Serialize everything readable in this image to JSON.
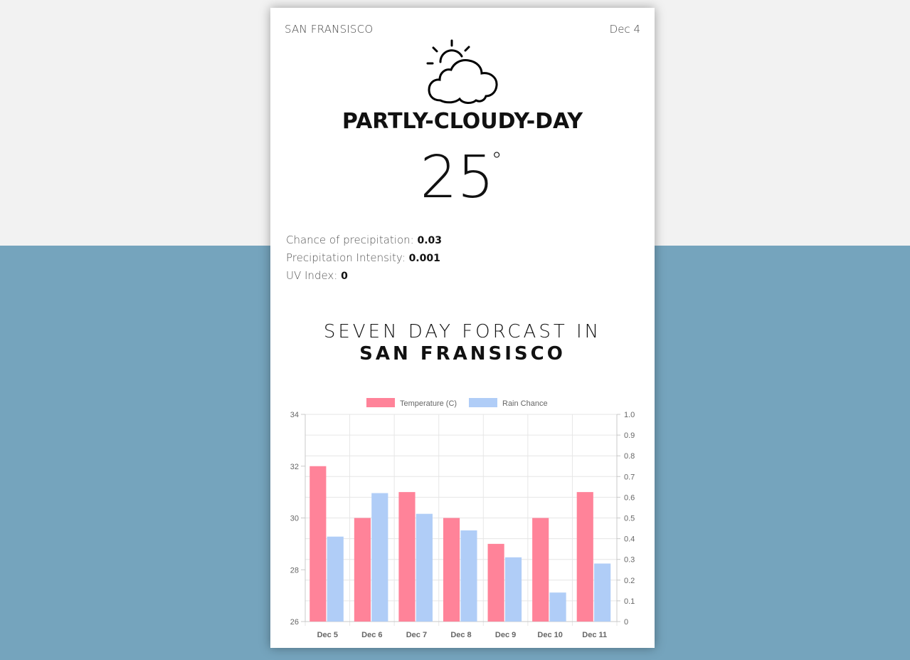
{
  "header": {
    "city": "SAN FRANSISCO",
    "date": "Dec 4"
  },
  "current": {
    "icon": "partly-cloudy-day-icon",
    "summary": "PARTLY-CLOUDY-DAY",
    "temperature": "25",
    "degree_symbol": "°"
  },
  "stats": [
    {
      "label": "Chance of precipitation:",
      "value": "0.03"
    },
    {
      "label": "Precipitation Intensity:",
      "value": "0.001"
    },
    {
      "label": "UV Index:",
      "value": "0"
    }
  ],
  "forecast": {
    "title_line1": "SEVEN DAY FORCAST IN",
    "title_line2": "SAN FRANSISCO"
  },
  "colors": {
    "temperature": "#ff8399",
    "rain": "#b0cdf7",
    "bottom_bg": "#75a4bd",
    "top_bg": "#f2f2f2"
  },
  "chart_data": {
    "type": "bar",
    "categories": [
      "Dec 5",
      "Dec 6",
      "Dec 7",
      "Dec 8",
      "Dec 9",
      "Dec 10",
      "Dec 11"
    ],
    "series": [
      {
        "name": "Temperature (C)",
        "axis": "left",
        "values": [
          32,
          30,
          31,
          30,
          29,
          30,
          31
        ]
      },
      {
        "name": "Rain Chance",
        "axis": "right",
        "values": [
          0.41,
          0.62,
          0.52,
          0.44,
          0.31,
          0.14,
          0.28
        ]
      }
    ],
    "y_left": {
      "min": 26,
      "max": 34,
      "ticks": [
        "26",
        "28",
        "30",
        "32",
        "34"
      ]
    },
    "y_right": {
      "min": 0,
      "max": 1,
      "ticks": [
        "0",
        "0.1",
        "0.2",
        "0.3",
        "0.4",
        "0.5",
        "0.6",
        "0.7",
        "0.8",
        "0.9",
        "1.0"
      ]
    },
    "grid": true,
    "legend": "top"
  }
}
